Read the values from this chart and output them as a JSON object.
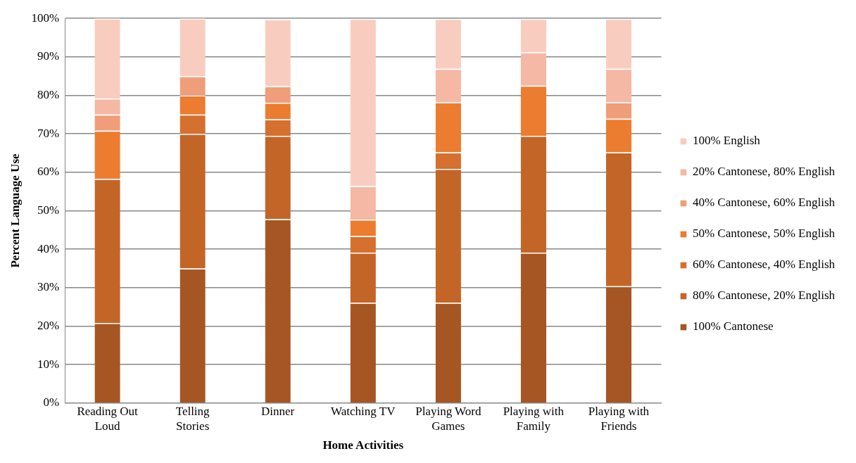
{
  "chart_data": {
    "type": "bar",
    "stacked": true,
    "xlabel": "Home Activities",
    "ylabel": "Percent Language Use",
    "categories": [
      "Reading Out Loud",
      "Telling Stories",
      "Dinner",
      "Watching TV",
      "Playing Word Games",
      "Playing with Family",
      "Playing with Friends"
    ],
    "series": [
      {
        "name": "100% Cantonese",
        "color": "#a65622",
        "values": [
          20.8,
          35,
          47.8,
          26.1,
          26.1,
          39.1,
          30.4
        ]
      },
      {
        "name": "80% Cantonese, 20% English",
        "color": "#c46528",
        "values": [
          37.5,
          35,
          21.7,
          13.0,
          34.8,
          30.4,
          34.8
        ]
      },
      {
        "name": "60% Cantonese, 40% English",
        "color": "#d5702f",
        "values": [
          0,
          5,
          4.3,
          4.3,
          4.3,
          0,
          0
        ]
      },
      {
        "name": "50% Cantonese, 50% English",
        "color": "#ec7c30",
        "values": [
          12.5,
          5,
          4.3,
          4.3,
          13.0,
          13.0,
          8.7
        ]
      },
      {
        "name": "40% Cantonese, 60% English",
        "color": "#f09e7a",
        "values": [
          4.2,
          5,
          4.3,
          0,
          0,
          0,
          4.3
        ]
      },
      {
        "name": "20% Cantonese, 80% English",
        "color": "#f4b8a4",
        "values": [
          4.2,
          0,
          0,
          8.7,
          8.7,
          8.7,
          8.7
        ]
      },
      {
        "name": "100% English",
        "color": "#f8cdc0",
        "values": [
          20.8,
          15,
          17.4,
          43.5,
          13.0,
          8.7,
          13.0
        ]
      }
    ],
    "ylim": [
      0,
      100
    ],
    "yticks": [
      {
        "value": 0,
        "label": "0%"
      },
      {
        "value": 10,
        "label": "10%"
      },
      {
        "value": 20,
        "label": "20%"
      },
      {
        "value": 30,
        "label": "30%"
      },
      {
        "value": 40,
        "label": "40%"
      },
      {
        "value": 50,
        "label": "50%"
      },
      {
        "value": 60,
        "label": "60%"
      },
      {
        "value": 70,
        "label": "70%"
      },
      {
        "value": 80,
        "label": "80%"
      },
      {
        "value": 90,
        "label": "90%"
      },
      {
        "value": 100,
        "label": "100%"
      }
    ],
    "grid": "y",
    "legend": "right"
  }
}
